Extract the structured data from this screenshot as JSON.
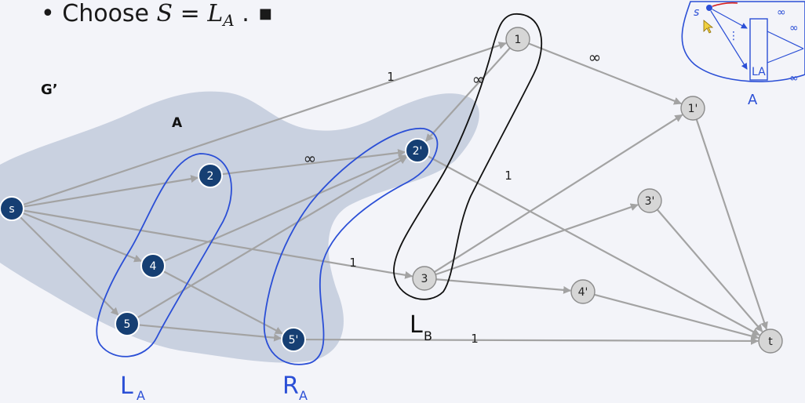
{
  "bullet": {
    "marker": "•",
    "prefix": "Choose ",
    "lhs": "S",
    "eq": " = ",
    "rhs": "L",
    "rhs_sub": "A",
    "suffix": " .",
    "end_mark": "■"
  },
  "labels": {
    "graph": "G’",
    "set_a": "A",
    "la": "L",
    "la_sub": "A",
    "ra": "R",
    "ra_sub": "A",
    "lb": "L",
    "lb_sub": "B",
    "inset_a": "A",
    "inset_s": "s",
    "inset_la": "LA",
    "inset_inf": "∞"
  },
  "nodes": [
    {
      "id": "s",
      "label": "s",
      "style": "dark"
    },
    {
      "id": "n2",
      "label": "2",
      "style": "dark"
    },
    {
      "id": "n4",
      "label": "4",
      "style": "dark"
    },
    {
      "id": "n5",
      "label": "5",
      "style": "dark"
    },
    {
      "id": "n2p",
      "label": "2'",
      "style": "dark"
    },
    {
      "id": "n5p",
      "label": "5'",
      "style": "dark"
    },
    {
      "id": "n1",
      "label": "1",
      "style": "light"
    },
    {
      "id": "n3",
      "label": "3",
      "style": "light"
    },
    {
      "id": "n1p",
      "label": "1'",
      "style": "light"
    },
    {
      "id": "n3p",
      "label": "3'",
      "style": "light"
    },
    {
      "id": "n4p",
      "label": "4'",
      "style": "light"
    },
    {
      "id": "t",
      "label": "t",
      "style": "light"
    }
  ],
  "edges": [
    {
      "from": "s",
      "to": "n1",
      "label": "1"
    },
    {
      "from": "s",
      "to": "n2",
      "label": ""
    },
    {
      "from": "s",
      "to": "n4",
      "label": ""
    },
    {
      "from": "s",
      "to": "n5",
      "label": ""
    },
    {
      "from": "s",
      "to": "n3",
      "label": "1"
    },
    {
      "from": "n2",
      "to": "n2p",
      "label": "∞"
    },
    {
      "from": "n4",
      "to": "n2p",
      "label": ""
    },
    {
      "from": "n5",
      "to": "n2p",
      "label": ""
    },
    {
      "from": "n4",
      "to": "n5p",
      "label": ""
    },
    {
      "from": "n5",
      "to": "n5p",
      "label": ""
    },
    {
      "from": "n1",
      "to": "n2p",
      "label": "∞"
    },
    {
      "from": "n1",
      "to": "n1p",
      "label": "∞"
    },
    {
      "from": "n2p",
      "to": "t",
      "label": "1"
    },
    {
      "from": "n3",
      "to": "n1p",
      "label": ""
    },
    {
      "from": "n3",
      "to": "n3p",
      "label": ""
    },
    {
      "from": "n3",
      "to": "n4p",
      "label": ""
    },
    {
      "from": "n1p",
      "to": "t",
      "label": ""
    },
    {
      "from": "n3p",
      "to": "t",
      "label": ""
    },
    {
      "from": "n4p",
      "to": "t",
      "label": ""
    },
    {
      "from": "n5p",
      "to": "t",
      "label": "1"
    }
  ],
  "colors": {
    "dark_node": "#163f73",
    "light_node": "#d6d6d6",
    "edge": "#a3a3a3",
    "region": "#c5cddd",
    "ink_blue": "#2b4fd6",
    "ink_black": "#111111",
    "ink_red": "#d42020"
  }
}
